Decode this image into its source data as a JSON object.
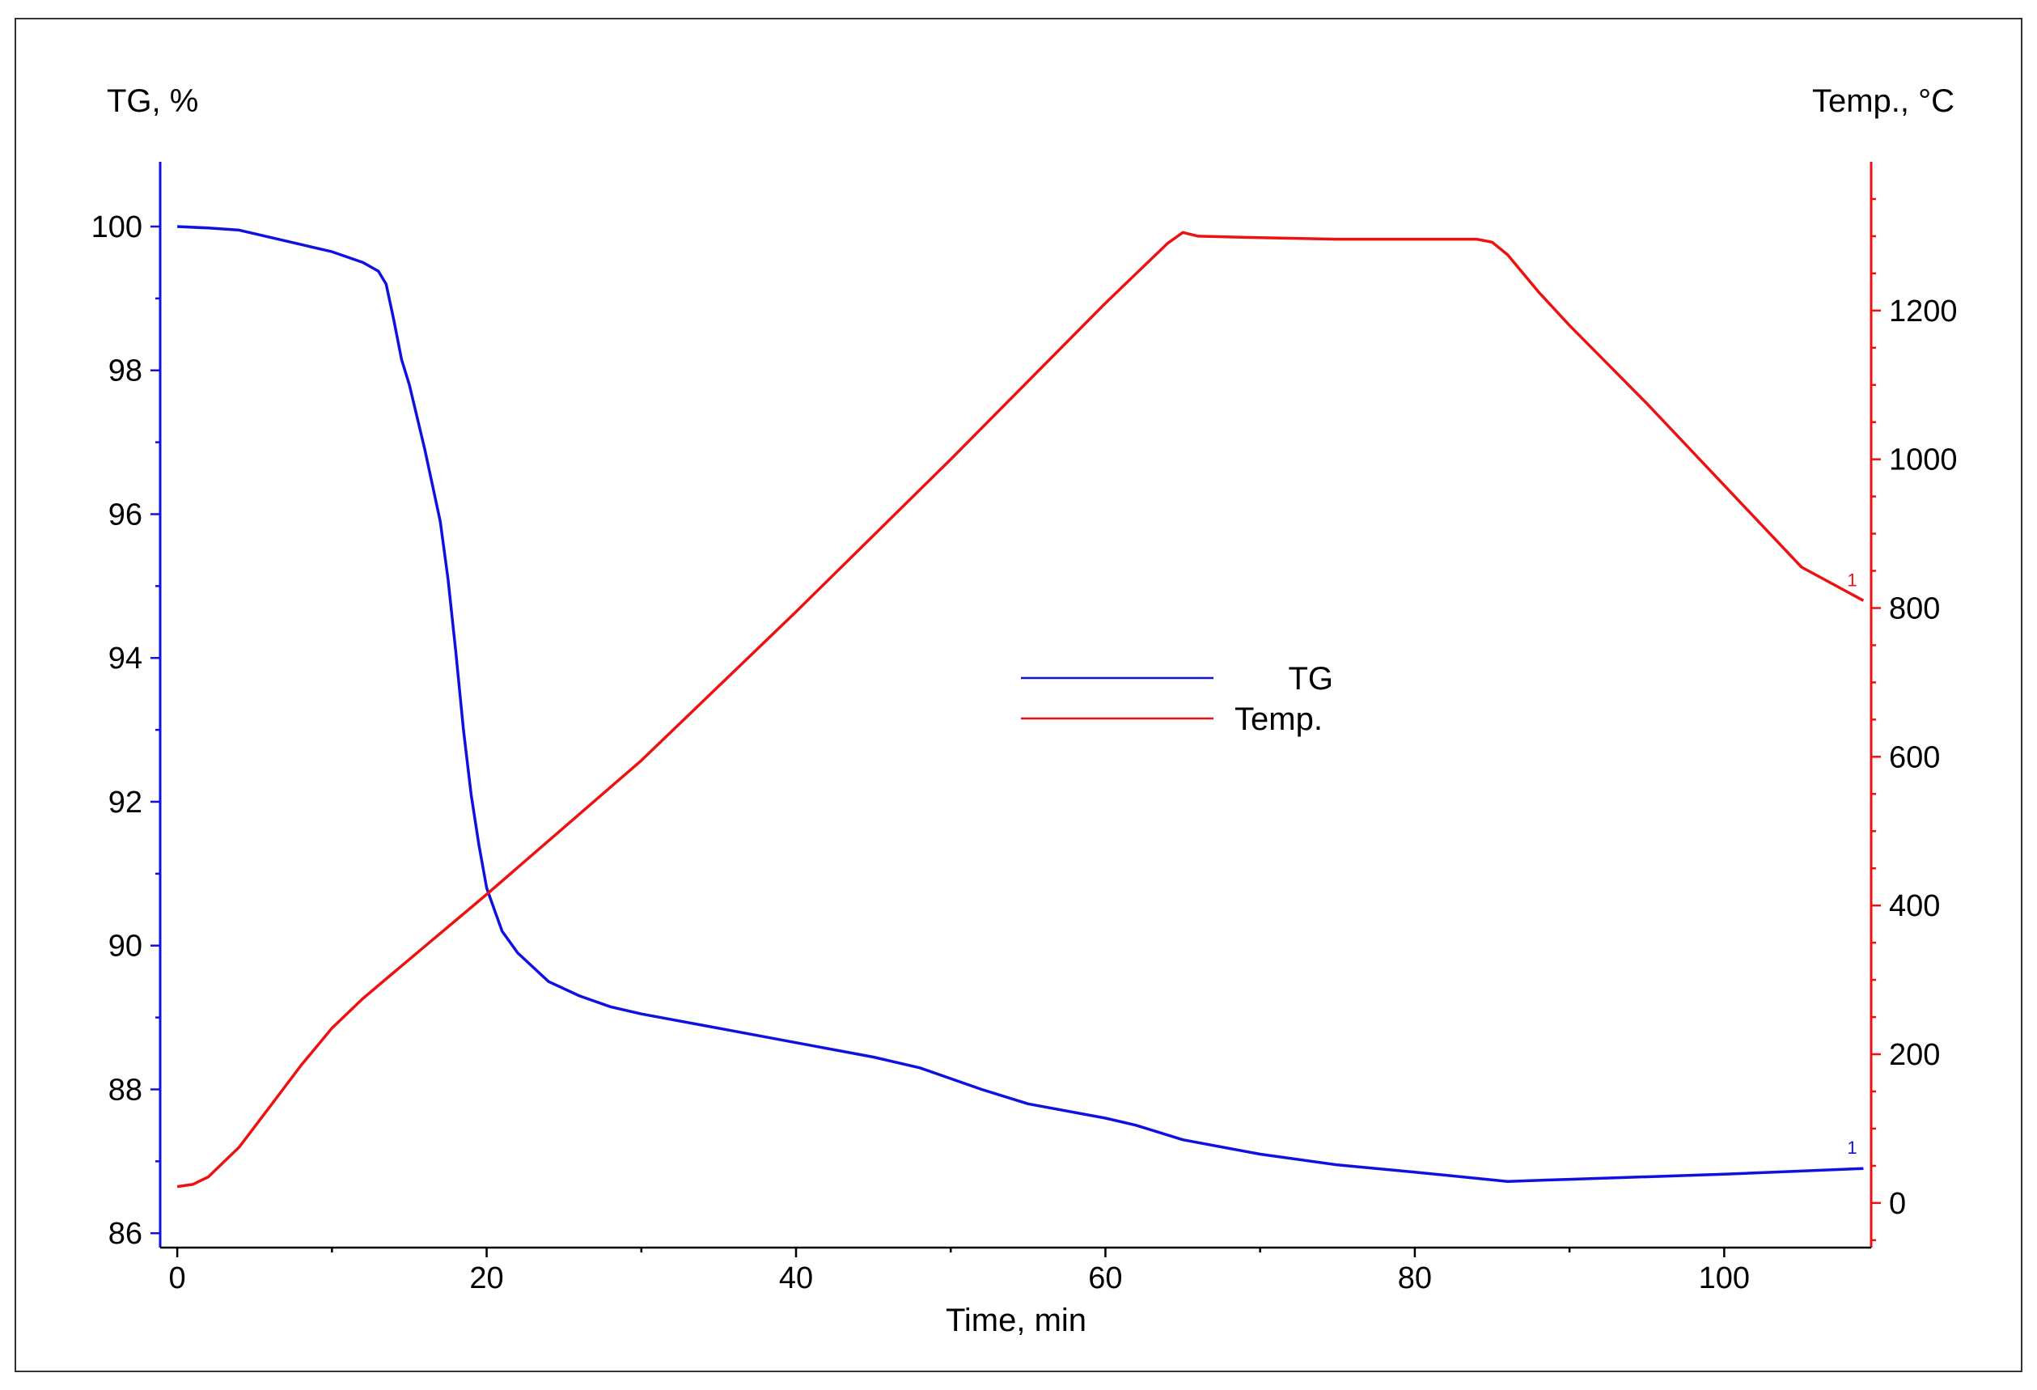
{
  "chart_data": {
    "type": "line",
    "title": "",
    "xlabel": "Time, min",
    "ylabel_left": "TG, %",
    "ylabel_right": "Temp., °C",
    "xlim": [
      -1,
      109.5
    ],
    "xticks": [
      0,
      20,
      40,
      60,
      80,
      100
    ],
    "ylim_left": [
      85.8,
      100.9
    ],
    "yticks_left": [
      86,
      88,
      90,
      92,
      94,
      96,
      98,
      100
    ],
    "ylim_right": [
      -60,
      1400
    ],
    "yticks_right": [
      0,
      200,
      400,
      600,
      800,
      1000,
      1200
    ],
    "grid": false,
    "legend_position": "center",
    "colors": {
      "TG": "#1010e0",
      "Temp": "#ee1111"
    },
    "end_marker": "1",
    "series": [
      {
        "name": "TG",
        "axis": "left",
        "x": [
          0,
          2,
          4,
          6,
          8,
          10,
          12,
          13,
          13.5,
          14,
          14.5,
          15,
          16,
          17,
          17.5,
          18,
          18.5,
          19,
          19.5,
          20,
          20.5,
          21,
          22,
          23,
          24,
          26,
          28,
          30,
          35,
          40,
          45,
          48,
          52,
          55,
          60,
          62,
          65,
          70,
          75,
          80,
          86,
          90,
          100,
          109
        ],
        "y": [
          100,
          99.98,
          99.95,
          99.85,
          99.75,
          99.65,
          99.5,
          99.38,
          99.2,
          98.7,
          98.15,
          97.8,
          96.9,
          95.9,
          95.1,
          94.1,
          93.0,
          92.1,
          91.4,
          90.8,
          90.5,
          90.2,
          89.9,
          89.7,
          89.5,
          89.3,
          89.15,
          89.05,
          88.85,
          88.65,
          88.45,
          88.3,
          88.0,
          87.8,
          87.6,
          87.5,
          87.3,
          87.1,
          86.95,
          86.85,
          86.72,
          86.75,
          86.82,
          86.9
        ]
      },
      {
        "name": "Temp.",
        "axis": "right",
        "x": [
          0,
          1,
          2,
          3,
          4,
          6,
          8,
          10,
          12,
          14,
          16,
          18,
          20,
          30,
          40,
          50,
          60,
          64,
          65,
          66,
          70,
          75,
          80,
          84,
          85,
          86,
          88,
          90,
          95,
          100,
          105,
          109
        ],
        "y": [
          22,
          25,
          35,
          55,
          75,
          130,
          185,
          235,
          275,
          310,
          345,
          380,
          415,
          595,
          795,
          1000,
          1210,
          1290,
          1305,
          1300,
          1298,
          1296,
          1296,
          1296,
          1292,
          1275,
          1225,
          1180,
          1075,
          965,
          855,
          810
        ]
      }
    ]
  }
}
